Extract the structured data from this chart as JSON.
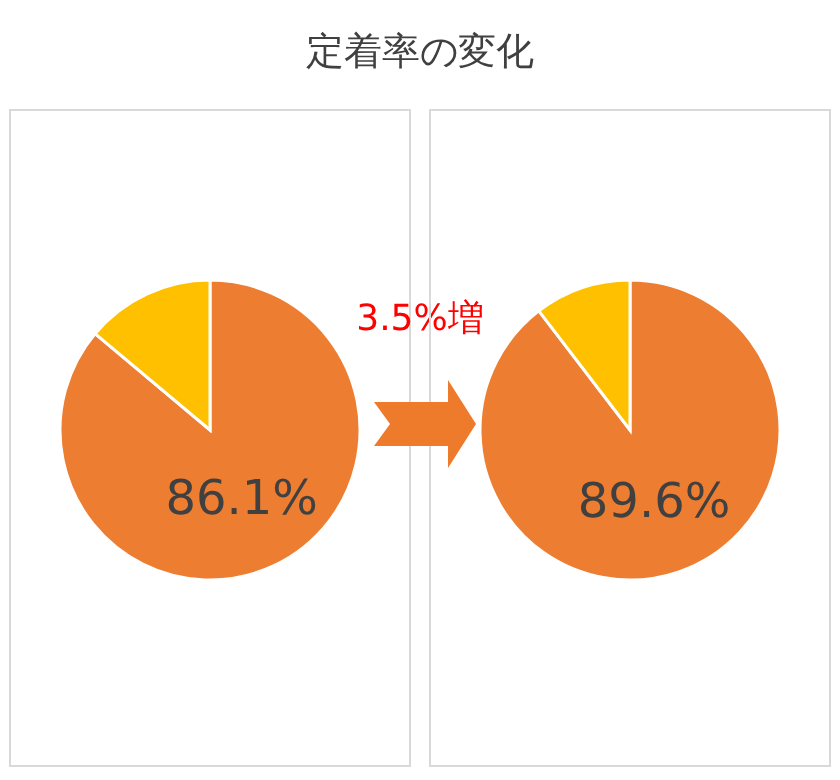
{
  "chart_data": [
    {
      "type": "pie",
      "title": "定着率の変化",
      "categories": [
        null,
        null
      ],
      "values": [
        86.1,
        13.9
      ],
      "colors": [
        "#ed7d31",
        "#ffc000"
      ],
      "value_labels": [
        "86.1%",
        null
      ],
      "annotations": [
        "3.5%増"
      ]
    },
    {
      "type": "pie",
      "categories": [
        null,
        null
      ],
      "values": [
        89.6,
        10.4
      ],
      "colors": [
        "#ed7d31",
        "#ffc000"
      ],
      "value_labels": [
        "89.6%",
        null
      ]
    }
  ]
}
